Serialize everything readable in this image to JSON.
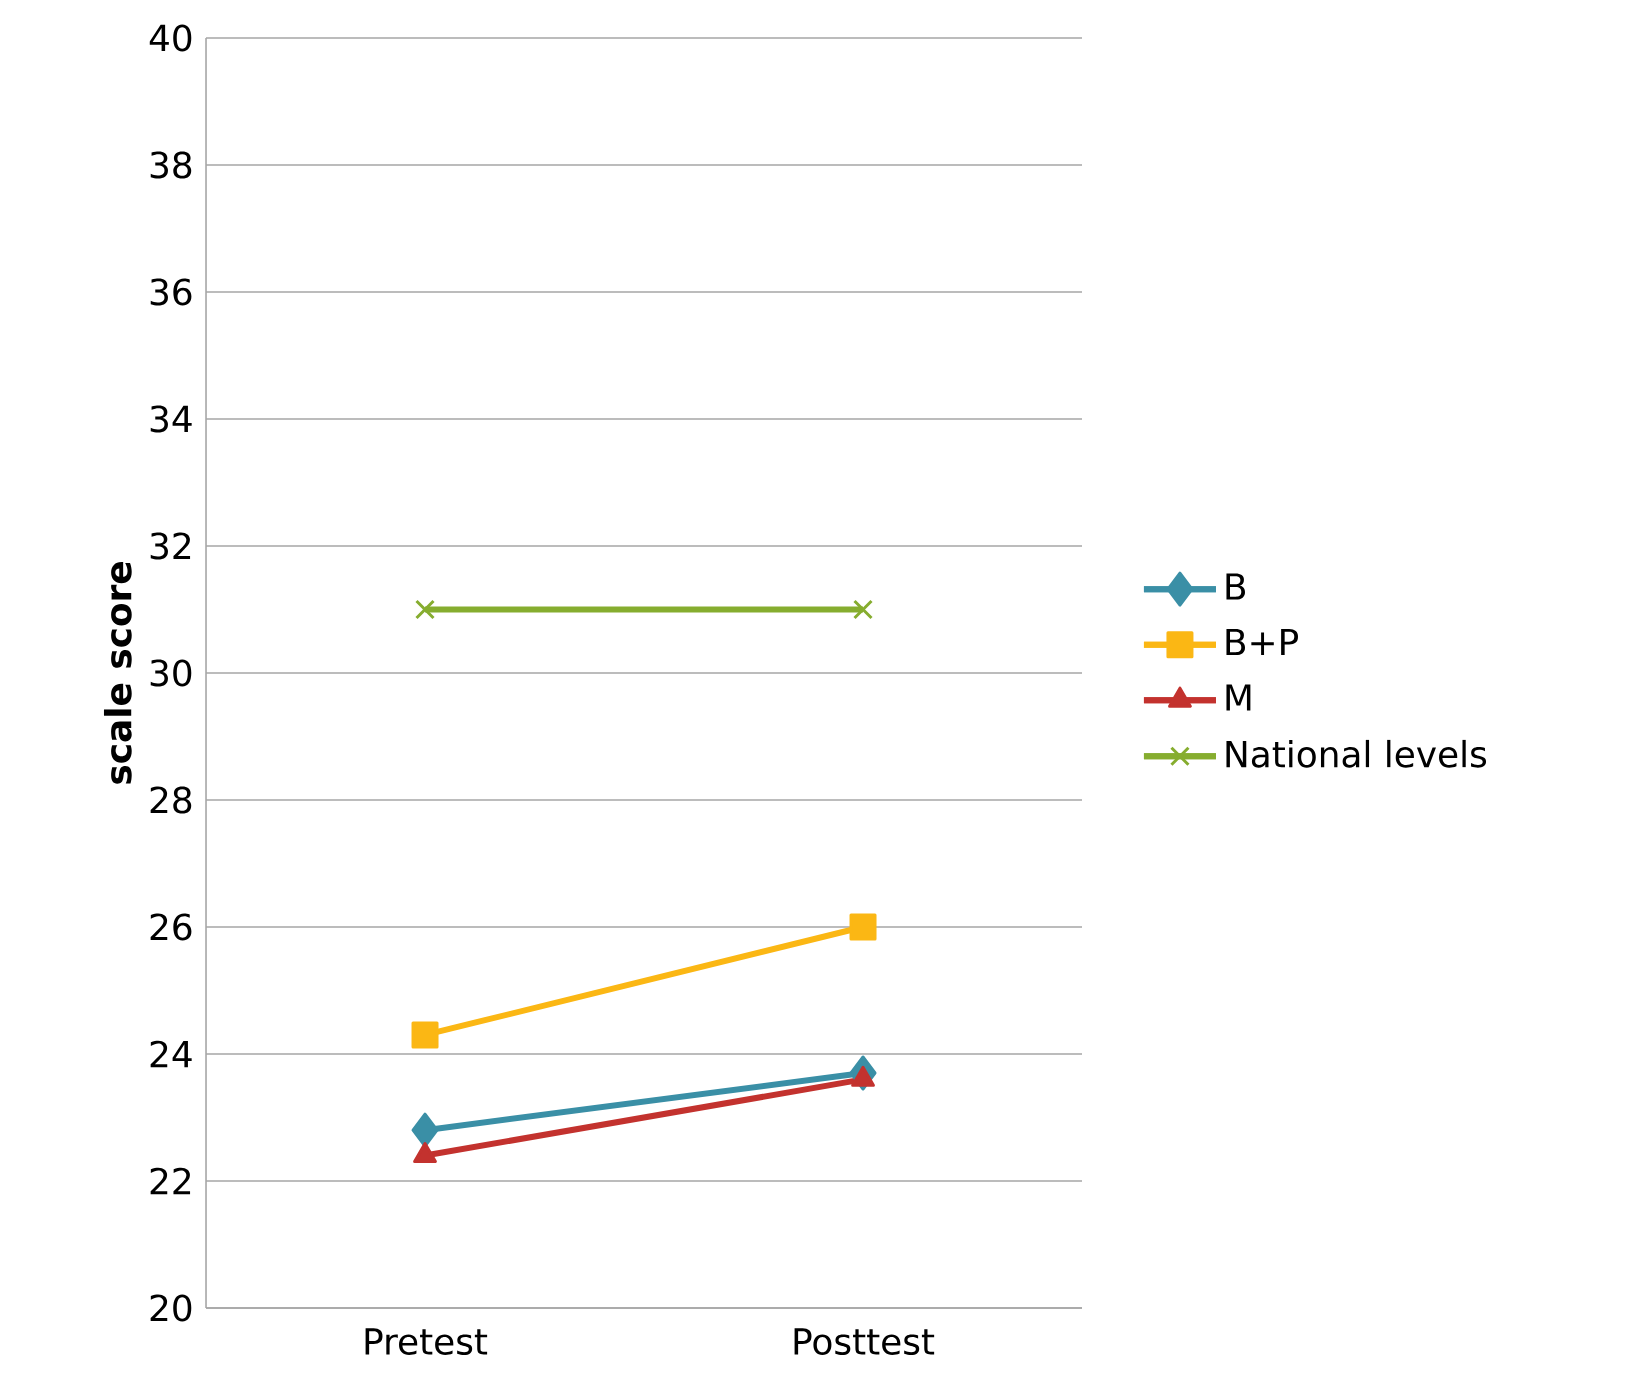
{
  "chart_data": {
    "type": "line",
    "ylabel": "scale score",
    "categories": [
      "Pretest",
      "Posttest"
    ],
    "series": [
      {
        "name": "B",
        "color": "#3a8fa6",
        "marker": "diamond",
        "values": [
          22.8,
          23.7
        ]
      },
      {
        "name": "B+P",
        "color": "#fbb714",
        "marker": "square",
        "values": [
          24.3,
          26.0
        ]
      },
      {
        "name": "M",
        "color": "#c3322e",
        "marker": "triangle",
        "values": [
          22.4,
          23.6
        ]
      },
      {
        "name": "National levels",
        "color": "#86ad2f",
        "marker": "cross",
        "values": [
          31,
          31
        ]
      }
    ],
    "ylim": [
      20,
      40
    ],
    "yticks": [
      20,
      22,
      24,
      26,
      28,
      30,
      32,
      34,
      36,
      38,
      40
    ],
    "grid": "y",
    "legend": "right"
  }
}
